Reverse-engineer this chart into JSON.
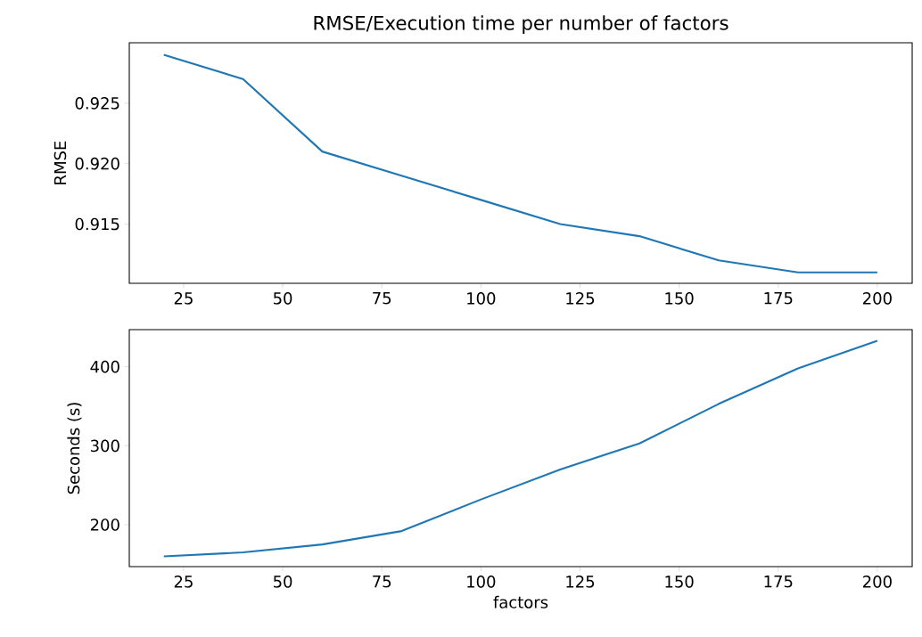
{
  "chart_data": [
    {
      "type": "line",
      "title": "RMSE/Execution time per number of factors",
      "ylabel": "RMSE",
      "x": [
        20,
        40,
        60,
        80,
        100,
        120,
        140,
        160,
        180,
        200
      ],
      "series": [
        {
          "color": "#1f77b4",
          "values": [
            0.929,
            0.927,
            0.921,
            0.919,
            0.917,
            0.915,
            0.914,
            0.912,
            0.911,
            0.911
          ]
        }
      ],
      "xlim": [
        11.3,
        208.8
      ],
      "ylim": [
        0.9101,
        0.93
      ],
      "xticks": [
        25,
        50,
        75,
        100,
        125,
        150,
        175,
        200
      ],
      "yticks": [
        0.915,
        {
          "value": 0.92,
          "label": "0.920"
        },
        0.925
      ]
    },
    {
      "type": "line",
      "xlabel": "factors",
      "ylabel": "Seconds (s)",
      "x": [
        20,
        40,
        60,
        80,
        100,
        120,
        140,
        160,
        180,
        200
      ],
      "series": [
        {
          "color": "#1f77b4",
          "values": [
            160,
            165,
            175,
            192,
            232,
            270,
            303,
            353,
            398,
            433
          ]
        }
      ],
      "xlim": [
        11.3,
        208.8
      ],
      "ylim": [
        147,
        447
      ],
      "xticks": [
        25,
        50,
        75,
        100,
        125,
        150,
        175,
        200
      ],
      "yticks": [
        200,
        300,
        400
      ]
    }
  ]
}
